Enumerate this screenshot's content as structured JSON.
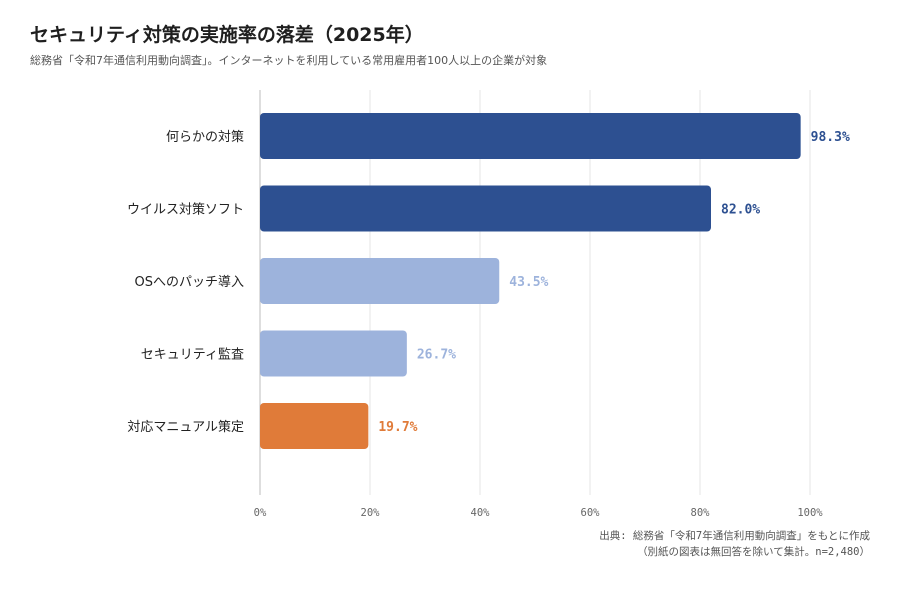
{
  "header": {
    "title": "セキュリティ対策の実施率の落差（2025年）",
    "subtitle": "総務省「令和7年通信利用動向調査」。インターネットを利用している常用雇用者100人以上の企業が対象"
  },
  "footer": {
    "source_line1": "出典: 総務省「令和7年通信利用動向調査」をもとに作成",
    "source_line2": "（別紙の図表は無回答を除いて集計。n=2,480）"
  },
  "chart_data": {
    "type": "bar",
    "orientation": "horizontal",
    "categories": [
      "何らかの対策",
      "ウイルス対策ソフト",
      "OSへのパッチ導入",
      "セキュリティ監査",
      "対応マニュアル策定"
    ],
    "values": [
      98.3,
      82.0,
      43.5,
      26.7,
      19.7
    ],
    "value_labels": [
      "98.3%",
      "82.0%",
      "43.5%",
      "26.7%",
      "19.7%"
    ],
    "bar_colors": [
      "#2d5091",
      "#2d5091",
      "#9db3dc",
      "#9db3dc",
      "#e07b39"
    ],
    "xlim": [
      0,
      100
    ],
    "xticks": [
      0,
      20,
      40,
      60,
      80,
      100
    ],
    "xtick_labels": [
      "0%",
      "20%",
      "40%",
      "60%",
      "80%",
      "100%"
    ],
    "grid": true,
    "legend": "none"
  }
}
